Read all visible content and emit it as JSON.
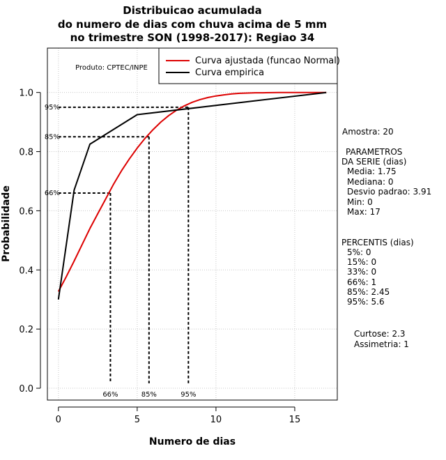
{
  "chart_data": {
    "type": "line",
    "title": [
      "Distribuicao acumulada",
      "do numero de dias com chuva acima de 5 mm",
      "no trimestre SON (1998-2017): Regiao 34"
    ],
    "xlabel": "Numero de dias",
    "ylabel": "Probabilidade",
    "xlim": [
      -0.7,
      17.7
    ],
    "ylim": [
      -0.04,
      1.15
    ],
    "xticks": [
      0,
      5,
      10,
      15
    ],
    "yticks": [
      0.0,
      0.2,
      0.4,
      0.6,
      0.8,
      1.0
    ],
    "xtick_labels": [
      "0",
      "5",
      "10",
      "15"
    ],
    "ytick_labels": [
      "0.0",
      "0.2",
      "0.4",
      "0.6",
      "0.8",
      "1.0"
    ],
    "grid": true,
    "legend_position": "top-right",
    "product_label": "Produto: CPTEC/INPE",
    "series": [
      {
        "name": "Curva ajustada (funcao Normal)",
        "color": "#dd0000",
        "x": [
          0,
          0.5,
          1,
          1.5,
          2,
          2.5,
          3,
          3.5,
          4,
          4.5,
          5,
          5.5,
          6,
          6.5,
          7,
          7.5,
          8,
          8.5,
          9,
          9.5,
          10,
          10.5,
          11,
          11.5,
          12,
          12.5,
          13,
          14,
          15,
          16,
          17
        ],
        "y": [
          0.327,
          0.377,
          0.43,
          0.485,
          0.54,
          0.59,
          0.64,
          0.69,
          0.735,
          0.775,
          0.812,
          0.845,
          0.874,
          0.9,
          0.922,
          0.94,
          0.955,
          0.967,
          0.976,
          0.983,
          0.988,
          0.992,
          0.995,
          0.997,
          0.998,
          0.999,
          0.999,
          1.0,
          1.0,
          1.0,
          1.0
        ]
      },
      {
        "name": "Curva empirica",
        "color": "#000000",
        "x": [
          0,
          1,
          2,
          5,
          17
        ],
        "y": [
          0.3,
          0.67,
          0.825,
          0.925,
          1.0
        ]
      }
    ],
    "percentile_lines": [
      {
        "label": "66%",
        "p": 0.66,
        "x": 3.3
      },
      {
        "label": "85%",
        "p": 0.85,
        "x": 5.75
      },
      {
        "label": "95%",
        "p": 0.95,
        "x": 8.25
      }
    ]
  },
  "stats": {
    "amostra": "Amostra: 20",
    "params_title_1": "PARAMETROS",
    "params_title_2": "DA SERIE (dias)",
    "media": "Media: 1.75",
    "mediana": "Mediana: 0",
    "desvio": "Desvio padrao: 3.91",
    "min": "Min: 0",
    "max": "Max: 17",
    "percentis_title": "PERCENTIS (dias)",
    "p5": "5%: 0",
    "p15": "15%: 0",
    "p33": "33%: 0",
    "p66": "66%: 1",
    "p85": "85%: 2.45",
    "p95": "95%: 5.6",
    "curtose": "Curtose: 2.3",
    "assimetria": "Assimetria: 1"
  }
}
